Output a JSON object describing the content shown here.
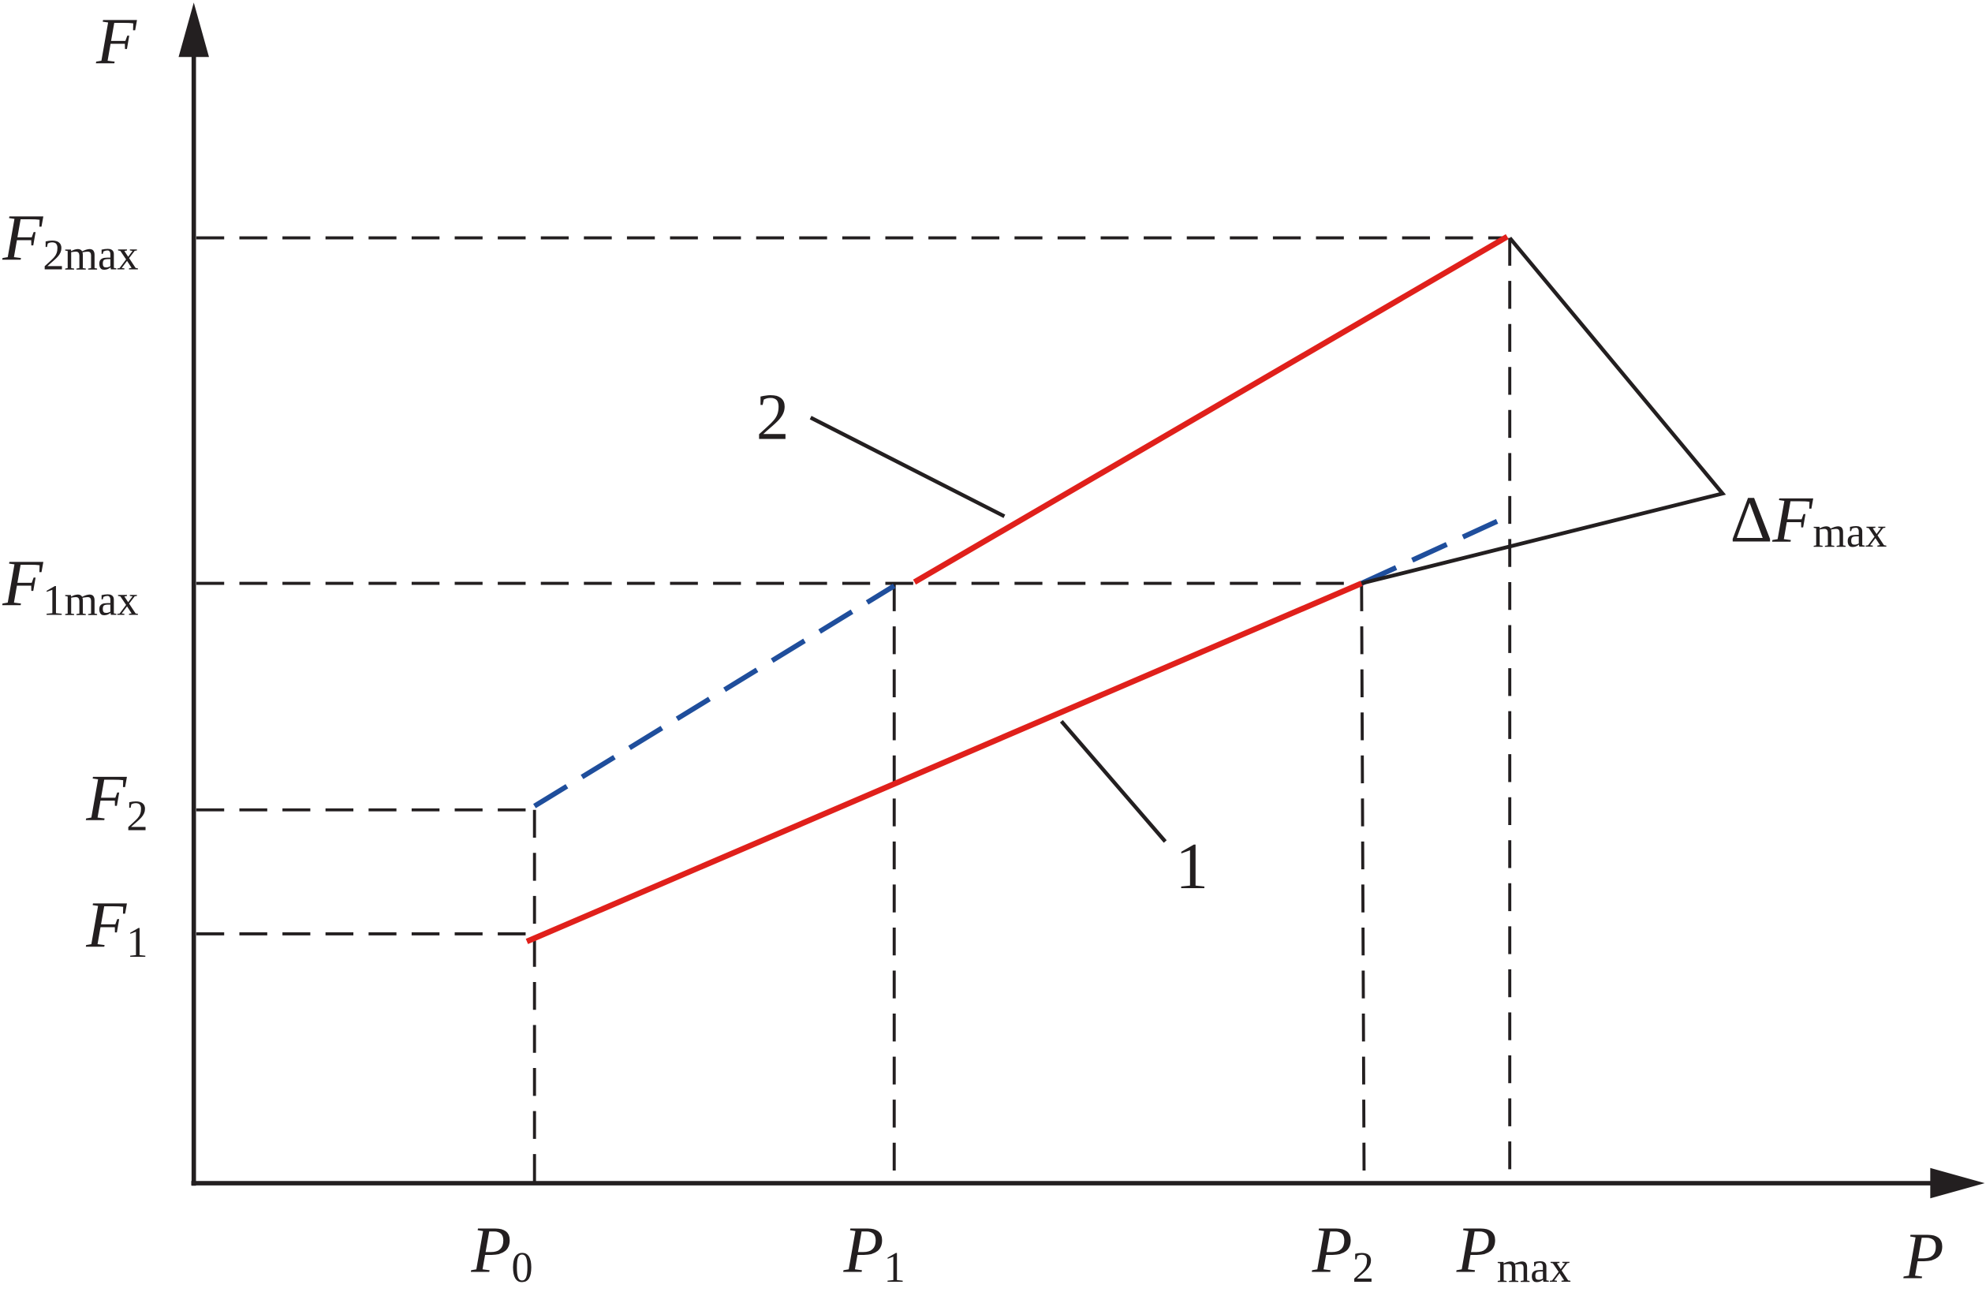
{
  "axes": {
    "y_label": "F",
    "x_label": "P"
  },
  "y_labels": [
    {
      "symbol": "F",
      "subscript": "2max"
    },
    {
      "symbol": "F",
      "subscript": "1max"
    },
    {
      "symbol": "F",
      "subscript": "2"
    },
    {
      "symbol": "F",
      "subscript": "1"
    }
  ],
  "x_labels": [
    {
      "symbol": "P",
      "subscript": "0"
    },
    {
      "symbol": "P",
      "subscript": "1"
    },
    {
      "symbol": "P",
      "subscript": "2"
    },
    {
      "symbol": "P",
      "subscript": "max"
    }
  ],
  "curve_labels": [
    "2",
    "1"
  ],
  "delta_label": {
    "prefix": "Δ",
    "symbol": "F",
    "subscript": "max"
  }
}
